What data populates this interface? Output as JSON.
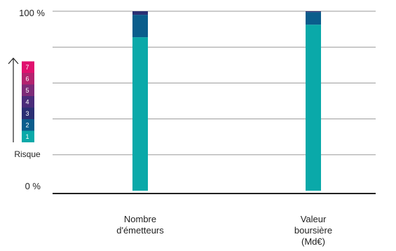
{
  "chart_data": {
    "type": "bar",
    "stacked": true,
    "categories": [
      [
        "Nombre",
        "d'émetteurs"
      ],
      [
        "Valeur",
        "boursière",
        "(Md€)"
      ]
    ],
    "ytick_labels": [
      "0 %",
      "100 %"
    ],
    "ylim": [
      0,
      100
    ],
    "grid": true,
    "series": [
      {
        "name": "1",
        "color": "#0aa9a9",
        "values": [
          85.5,
          92.5
        ]
      },
      {
        "name": "2",
        "color": "#0a5d8c",
        "values": [
          12.5,
          7.0
        ]
      },
      {
        "name": "3",
        "color": "#2a2f73",
        "values": [
          2.0,
          0.5
        ]
      },
      {
        "name": "4",
        "color": "#4a2c7a",
        "values": [
          0,
          0
        ]
      },
      {
        "name": "5",
        "color": "#7d2b78",
        "values": [
          0,
          0
        ]
      },
      {
        "name": "6",
        "color": "#b3236f",
        "values": [
          0,
          0
        ]
      },
      {
        "name": "7",
        "color": "#e0106e",
        "values": [
          0,
          0
        ]
      }
    ],
    "legend": {
      "title": "Risque",
      "placement": "left",
      "arrow": "up"
    }
  }
}
